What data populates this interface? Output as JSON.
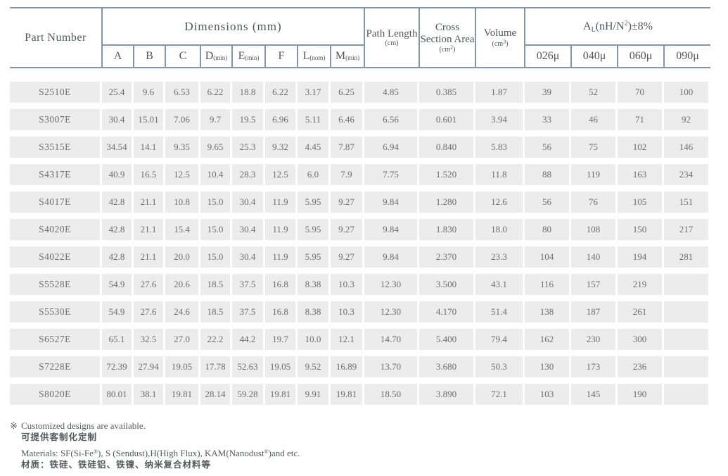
{
  "colors": {
    "border": "#8694a8",
    "cell_background": "#ececec",
    "header_text": "#51565e",
    "body_text": "#6e6e6e"
  },
  "table": {
    "header": {
      "part_number": "Part Number",
      "dimensions": {
        "title": "Dimensions (mm)",
        "columns": [
          {
            "label": "A",
            "sub": ""
          },
          {
            "label": "B",
            "sub": ""
          },
          {
            "label": "C",
            "sub": ""
          },
          {
            "label": "D",
            "sub": "(min)"
          },
          {
            "label": "E",
            "sub": "(min)"
          },
          {
            "label": "F",
            "sub": ""
          },
          {
            "label": "L",
            "sub": "(nom)"
          },
          {
            "label": "M",
            "sub": "(min)"
          }
        ]
      },
      "path_length": {
        "title": "Path Length",
        "unit": "(cm)"
      },
      "cross_section": {
        "title": "Cross Section Area",
        "unit_pre": "(cm",
        "unit_sup": "2",
        "unit_post": ")"
      },
      "volume": {
        "title": "Volume",
        "unit_pre": "(cm",
        "unit_sup": "3",
        "unit_post": ")"
      },
      "al": {
        "pre": "A",
        "sub": "L",
        "mid": "(nH/N",
        "sup": "2",
        "post": ")±8%",
        "columns": [
          "026μ",
          "040μ",
          "060μ",
          "090μ"
        ]
      }
    },
    "rows": [
      {
        "part": "S2510E",
        "dims": [
          "25.4",
          "9.6",
          "6.53",
          "6.22",
          "18.8",
          "6.22",
          "3.17",
          "6.25"
        ],
        "path_length": "4.85",
        "cross_section": "0.385",
        "volume": "1.87",
        "al": [
          "39",
          "52",
          "70",
          "100"
        ]
      },
      {
        "part": "S3007E",
        "dims": [
          "30.4",
          "15.01",
          "7.06",
          "9.7",
          "19.5",
          "6.96",
          "5.11",
          "6.46"
        ],
        "path_length": "6.56",
        "cross_section": "0.601",
        "volume": "3.94",
        "al": [
          "33",
          "46",
          "71",
          "92"
        ]
      },
      {
        "part": "S3515E",
        "dims": [
          "34.54",
          "14.1",
          "9.35",
          "9.65",
          "25.3",
          "9.32",
          "4.45",
          "7.87"
        ],
        "path_length": "6.94",
        "cross_section": "0.840",
        "volume": "5.83",
        "al": [
          "56",
          "75",
          "102",
          "146"
        ]
      },
      {
        "part": "S4317E",
        "dims": [
          "40.9",
          "16.5",
          "12.5",
          "10.4",
          "28.3",
          "12.5",
          "6.0",
          "7.9"
        ],
        "path_length": "7.75",
        "cross_section": "1.520",
        "volume": "11.8",
        "al": [
          "88",
          "119",
          "163",
          "234"
        ]
      },
      {
        "part": "S4017E",
        "dims": [
          "42.8",
          "21.1",
          "10.8",
          "15.0",
          "30.4",
          "11.9",
          "5.95",
          "9.27"
        ],
        "path_length": "9.84",
        "cross_section": "1.280",
        "volume": "12.6",
        "al": [
          "56",
          "76",
          "105",
          "151"
        ]
      },
      {
        "part": "S4020E",
        "dims": [
          "42.8",
          "21.1",
          "15.4",
          "15.0",
          "30.4",
          "11.9",
          "5.95",
          "9.27"
        ],
        "path_length": "9.84",
        "cross_section": "1.830",
        "volume": "18.0",
        "al": [
          "80",
          "108",
          "150",
          "217"
        ]
      },
      {
        "part": "S4022E",
        "dims": [
          "42.8",
          "21.1",
          "20.0",
          "15.0",
          "30.4",
          "11.9",
          "5.95",
          "9.27"
        ],
        "path_length": "9.84",
        "cross_section": "2.370",
        "volume": "23.3",
        "al": [
          "104",
          "140",
          "194",
          "281"
        ]
      },
      {
        "part": "S5528E",
        "dims": [
          "54.9",
          "27.6",
          "20.6",
          "18.5",
          "37.5",
          "16.8",
          "8.38",
          "10.3"
        ],
        "path_length": "12.30",
        "cross_section": "3.500",
        "volume": "43.1",
        "al": [
          "116",
          "157",
          "219",
          ""
        ]
      },
      {
        "part": "S5530E",
        "dims": [
          "54.9",
          "27.6",
          "24.6",
          "18.5",
          "37.5",
          "16.8",
          "8.38",
          "10.3"
        ],
        "path_length": "12.30",
        "cross_section": "4.170",
        "volume": "51.4",
        "al": [
          "138",
          "187",
          "261",
          ""
        ]
      },
      {
        "part": "S6527E",
        "dims": [
          "65.1",
          "32.5",
          "27.0",
          "22.2",
          "44.2",
          "19.7",
          "10.0",
          "12.1"
        ],
        "path_length": "14.70",
        "cross_section": "5.400",
        "volume": "79.4",
        "al": [
          "162",
          "230",
          "300",
          ""
        ]
      },
      {
        "part": "S7228E",
        "dims": [
          "72.39",
          "27.94",
          "19.05",
          "17.78",
          "52.63",
          "19.05",
          "9.52",
          "16.89"
        ],
        "path_length": "13.70",
        "cross_section": "3.680",
        "volume": "50.3",
        "al": [
          "130",
          "173",
          "236",
          ""
        ]
      },
      {
        "part": "S8020E",
        "dims": [
          "80.01",
          "38.1",
          "19.81",
          "28.14",
          "59.28",
          "19.81",
          "9.91",
          "19.81"
        ],
        "path_length": "18.50",
        "cross_section": "3.890",
        "volume": "72.1",
        "al": [
          "103",
          "145",
          "190",
          ""
        ]
      }
    ]
  },
  "footnotes": {
    "marker": "※",
    "custom_en": "Customized designs are available.",
    "custom_zh": "可提供客制化定制",
    "materials": {
      "p1": "Materials: SF(Si-Fe",
      "sup1": "®",
      "p2": "), S (Sendust),H(High Flux), KAM(Nanodust",
      "sup2": "®",
      "p3": ")and etc."
    },
    "materials_zh": "材质：铁硅、铁硅铝、铁镍、纳米复合材料等"
  }
}
